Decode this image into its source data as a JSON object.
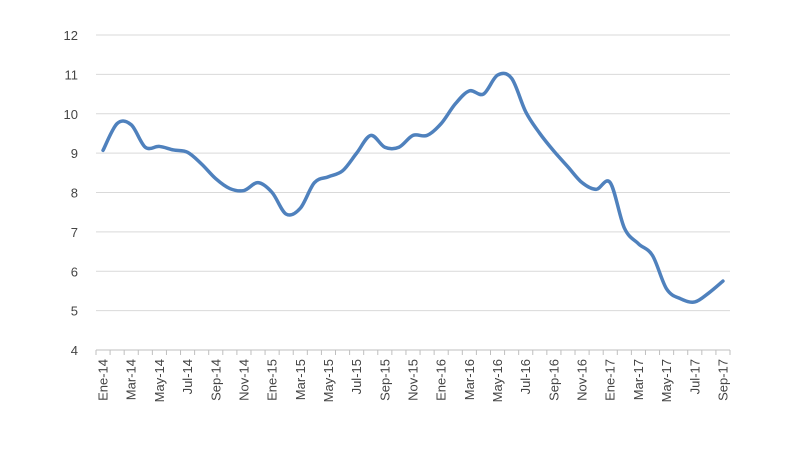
{
  "chart_data": {
    "type": "line",
    "title": "",
    "xlabel": "",
    "ylabel": "",
    "ylim": [
      4,
      12
    ],
    "yticks": [
      4,
      5,
      6,
      7,
      8,
      9,
      10,
      11,
      12
    ],
    "grid": "horizontal",
    "legend": "none",
    "line_color": "#4F81BD",
    "x_tick_labels": [
      "Ene-14",
      "Mar-14",
      "May-14",
      "Jul-14",
      "Sep-14",
      "Nov-14",
      "Ene-15",
      "Mar-15",
      "May-15",
      "Jul-15",
      "Sep-15",
      "Nov-15",
      "Ene-16",
      "Mar-16",
      "May-16",
      "Jul-16",
      "Sep-16",
      "Nov-16",
      "Ene-17",
      "Mar-17",
      "May-17",
      "Jul-17",
      "Sep-17"
    ],
    "categories": [
      "Ene-14",
      "Feb-14",
      "Mar-14",
      "Abr-14",
      "May-14",
      "Jun-14",
      "Jul-14",
      "Ago-14",
      "Sep-14",
      "Oct-14",
      "Nov-14",
      "Dic-14",
      "Ene-15",
      "Feb-15",
      "Mar-15",
      "Abr-15",
      "May-15",
      "Jun-15",
      "Jul-15",
      "Ago-15",
      "Sep-15",
      "Oct-15",
      "Nov-15",
      "Dic-15",
      "Ene-16",
      "Feb-16",
      "Mar-16",
      "Abr-16",
      "May-16",
      "Jun-16",
      "Jul-16",
      "Ago-16",
      "Sep-16",
      "Oct-16",
      "Nov-16",
      "Dic-16",
      "Ene-17",
      "Feb-17",
      "Mar-17",
      "Abr-17",
      "May-17",
      "Jun-17",
      "Jul-17",
      "Ago-17",
      "Sep-17"
    ],
    "series": [
      {
        "values": [
          9.07,
          9.75,
          9.72,
          9.15,
          9.17,
          9.08,
          9.02,
          8.72,
          8.35,
          8.1,
          8.05,
          8.25,
          8.0,
          7.45,
          7.6,
          8.25,
          8.4,
          8.55,
          9.0,
          9.45,
          9.15,
          9.15,
          9.45,
          9.45,
          9.75,
          10.25,
          10.58,
          10.5,
          10.98,
          10.9,
          10.05,
          9.5,
          9.05,
          8.65,
          8.25,
          8.08,
          8.25,
          7.1,
          6.7,
          6.4,
          5.55,
          5.3,
          5.22,
          5.45,
          5.75
        ]
      }
    ]
  }
}
